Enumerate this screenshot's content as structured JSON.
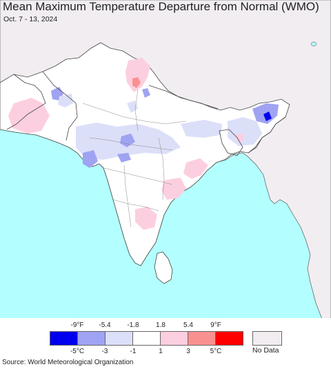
{
  "title": "Mean Maximum Temperature Departure from Normal (WMO)",
  "subtitle": "Oct. 7 - 13, 2024",
  "legend": {
    "fahrenheit_ticks": [
      "-9°F",
      "-5.4",
      "-1.8",
      "1.8",
      "5.4",
      "9°F"
    ],
    "celsius_ticks": [
      "-5°C",
      "-3",
      "-1",
      "1",
      "3",
      "5°C"
    ],
    "bins": [
      {
        "color": "#0000ee",
        "meaning": "below -5°C"
      },
      {
        "color": "#9fa3f2",
        "meaning": "-5 to -3°C"
      },
      {
        "color": "#dcdff8",
        "meaning": "-3 to -1°C"
      },
      {
        "color": "#ffffff",
        "meaning": "-1 to 1°C"
      },
      {
        "color": "#fccfe0",
        "meaning": "1 to 3°C"
      },
      {
        "color": "#f99090",
        "meaning": "3 to 5°C"
      },
      {
        "color": "#ff0000",
        "meaning": "above 5°C"
      }
    ],
    "no_data_color": "#f1edf1",
    "no_data_label": "No Data"
  },
  "colors": {
    "ocean": "#b3ffff",
    "land_no_data": "#f1edf1",
    "border": "#444444"
  },
  "source": "Source: World Meteorological Organization"
}
